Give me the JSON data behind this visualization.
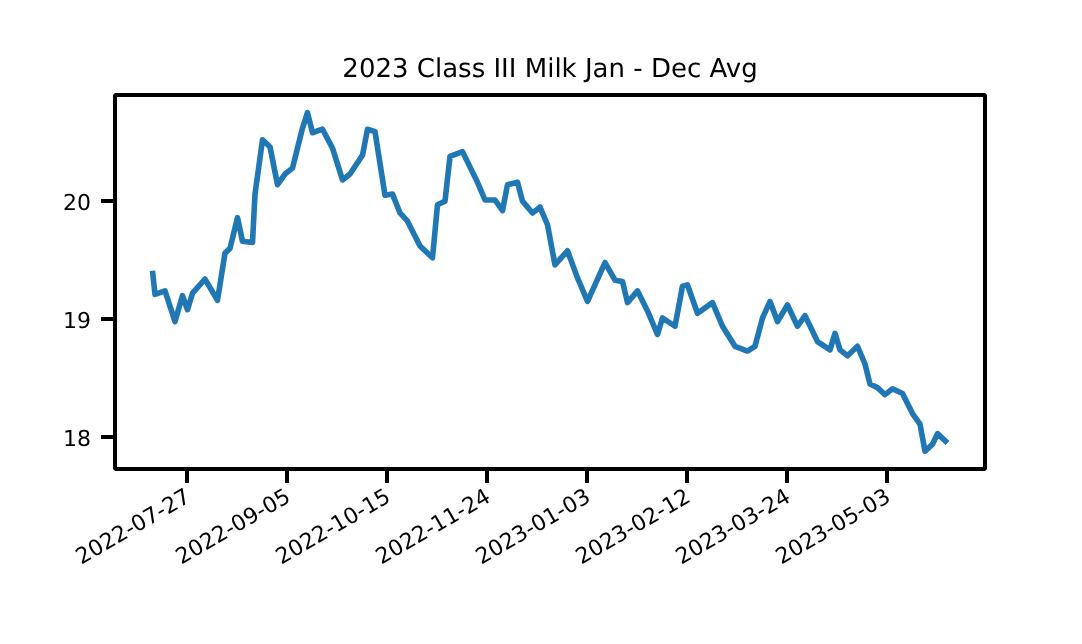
{
  "chart_data": {
    "type": "line",
    "title": "2023 Class III Milk Jan - Dec Avg",
    "x": [
      "2022-07-13",
      "2022-07-14",
      "2022-07-18",
      "2022-07-22",
      "2022-07-25",
      "2022-07-27",
      "2022-07-29",
      "2022-08-03",
      "2022-08-08",
      "2022-08-11",
      "2022-08-13",
      "2022-08-16",
      "2022-08-18",
      "2022-08-22",
      "2022-08-23",
      "2022-08-26",
      "2022-08-29",
      "2022-09-01",
      "2022-09-04",
      "2022-09-07",
      "2022-09-11",
      "2022-09-13",
      "2022-09-15",
      "2022-09-19",
      "2022-09-23",
      "2022-09-27",
      "2022-09-30",
      "2022-10-05",
      "2022-10-07",
      "2022-10-10",
      "2022-10-14",
      "2022-10-17",
      "2022-10-20",
      "2022-10-23",
      "2022-10-28",
      "2022-11-02",
      "2022-11-04",
      "2022-11-07",
      "2022-11-09",
      "2022-11-14",
      "2022-11-20",
      "2022-11-23",
      "2022-11-27",
      "2022-11-30",
      "2022-12-02",
      "2022-12-06",
      "2022-12-08",
      "2022-12-12",
      "2022-12-15",
      "2022-12-18",
      "2022-12-21",
      "2022-12-26",
      "2022-12-30",
      "2023-01-03",
      "2023-01-10",
      "2023-01-14",
      "2023-01-17",
      "2023-01-19",
      "2023-01-23",
      "2023-01-27",
      "2023-01-31",
      "2023-02-02",
      "2023-02-07",
      "2023-02-10",
      "2023-02-12",
      "2023-02-16",
      "2023-02-22",
      "2023-02-26",
      "2023-03-03",
      "2023-03-08",
      "2023-03-11",
      "2023-03-14",
      "2023-03-17",
      "2023-03-20",
      "2023-03-24",
      "2023-03-28",
      "2023-03-31",
      "2023-04-05",
      "2023-04-10",
      "2023-04-12",
      "2023-04-14",
      "2023-04-17",
      "2023-04-21",
      "2023-04-24",
      "2023-04-26",
      "2023-04-29",
      "2023-05-02",
      "2023-05-05",
      "2023-05-09",
      "2023-05-13",
      "2023-05-16",
      "2023-05-18",
      "2023-05-21",
      "2023-05-23",
      "2023-05-27"
    ],
    "series": [
      {
        "color": "#1f77b4",
        "values": [
          19.41,
          19.21,
          19.24,
          18.98,
          19.2,
          19.08,
          19.22,
          19.34,
          19.16,
          19.56,
          19.6,
          19.86,
          19.66,
          19.65,
          20.06,
          20.52,
          20.46,
          20.14,
          20.23,
          20.28,
          20.62,
          20.75,
          20.58,
          20.61,
          20.45,
          20.18,
          20.23,
          20.39,
          20.61,
          20.59,
          20.05,
          20.06,
          19.9,
          19.83,
          19.62,
          19.52,
          19.97,
          20.0,
          20.38,
          20.42,
          20.16,
          20.01,
          20.01,
          19.92,
          20.14,
          20.16,
          20.0,
          19.9,
          19.95,
          19.8,
          19.46,
          19.58,
          19.35,
          19.15,
          19.48,
          19.33,
          19.32,
          19.14,
          19.24,
          19.07,
          18.87,
          19.01,
          18.94,
          19.28,
          19.29,
          19.05,
          19.14,
          18.94,
          18.77,
          18.73,
          18.77,
          19.01,
          19.15,
          18.98,
          19.12,
          18.94,
          19.03,
          18.81,
          18.74,
          18.88,
          18.74,
          18.69,
          18.77,
          18.62,
          18.45,
          18.42,
          18.36,
          18.41,
          18.37,
          18.2,
          18.11,
          17.88,
          17.94,
          18.03,
          17.95
        ]
      }
    ],
    "xlim": [
      "2022-06-28",
      "2023-06-11"
    ],
    "xticks": [
      "2022-07-27",
      "2022-09-05",
      "2022-10-15",
      "2022-11-24",
      "2023-01-03",
      "2023-02-12",
      "2023-03-24",
      "2023-05-03"
    ],
    "ylim": [
      17.73,
      20.9
    ],
    "yticks": [
      18,
      19,
      20
    ],
    "grid": false,
    "marker": "none",
    "line_style": "solid"
  }
}
